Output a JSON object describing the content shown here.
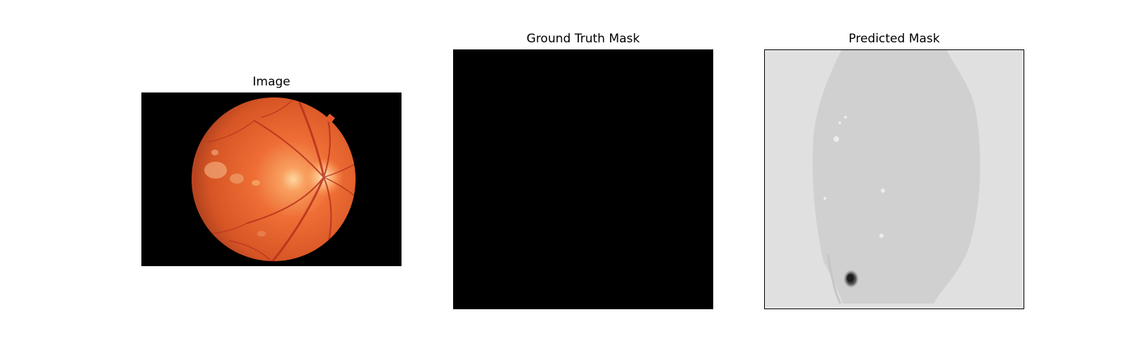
{
  "figure": {
    "panels": [
      {
        "title": "Image"
      },
      {
        "title": "Ground Truth Mask"
      },
      {
        "title": "Predicted Mask"
      }
    ]
  }
}
